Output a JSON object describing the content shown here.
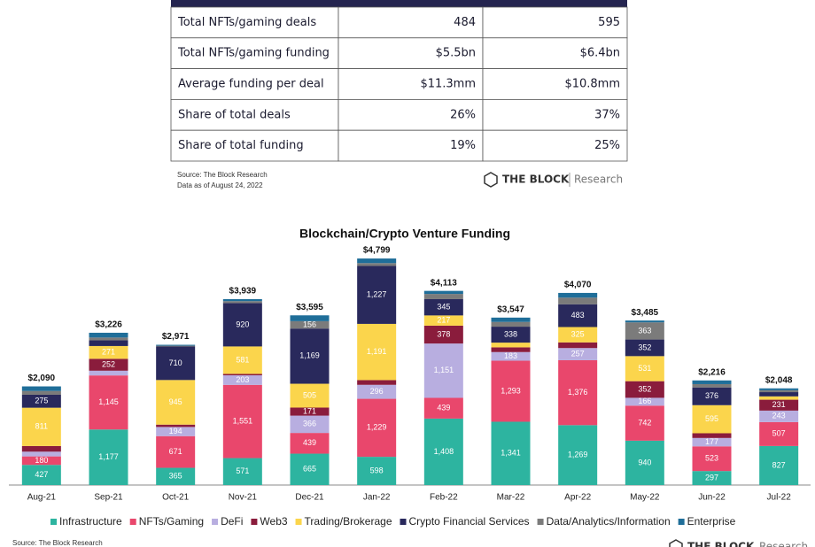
{
  "table": {
    "rows": [
      [
        "Total NFTs/gaming deals",
        "484",
        "595"
      ],
      [
        "Total NFTs/gaming funding",
        "$5.5bn",
        "$6.4bn"
      ],
      [
        "Average funding per deal",
        "$11.3mm",
        "$10.8mm"
      ],
      [
        "Share of total deals",
        "26%",
        "37%"
      ],
      [
        "Share of total funding",
        "19%",
        "25%"
      ]
    ],
    "source": "Source: The Block Research",
    "date": "Data as of August 24, 2022"
  },
  "logo": {
    "name": "THE BLOCK",
    "sub": "Research"
  },
  "chart_data": {
    "type": "stacked_bar",
    "title": "Blockchain/Crypto Venture Funding",
    "categories": [
      "Aug-21",
      "Sep-21",
      "Oct-21",
      "Nov-21",
      "Dec-21",
      "Jan-22",
      "Feb-22",
      "Mar-22",
      "Apr-22",
      "May-22",
      "Jun-22",
      "Jul-22"
    ],
    "total_labels": [
      "$2,090",
      "$3,226",
      "$2,971",
      "$3,939",
      "$3,595",
      "$4,799",
      "$4,113",
      "$3,547",
      "$4,070",
      "$3,485",
      "$2,216",
      "$2,048"
    ],
    "ylim": [
      0,
      5100
    ],
    "series": [
      {
        "name": "Infrastructure",
        "color": "#2db4a0",
        "values": [
          427,
          1177,
          365,
          571,
          665,
          598,
          1408,
          1341,
          1269,
          940,
          297,
          827
        ],
        "value_labels": [
          "427",
          "1,177",
          "365",
          "571",
          "665",
          "598",
          "1,408",
          "1,341",
          "1,269",
          "940",
          "297",
          "827"
        ]
      },
      {
        "name": "NFTs/Gaming",
        "color": "#e9476c",
        "values": [
          180,
          1145,
          671,
          1551,
          439,
          1229,
          439,
          1293,
          1376,
          742,
          523,
          507
        ],
        "value_labels": [
          "180",
          "1,145",
          "671",
          "1,551",
          "439",
          "1,229",
          "439",
          "1,293",
          "1,376",
          "742",
          "523",
          "507"
        ]
      },
      {
        "name": "DeFi",
        "color": "#b8aee0",
        "values": [
          100,
          100,
          194,
          203,
          366,
          296,
          1151,
          183,
          257,
          166,
          177,
          243
        ],
        "value_labels": [
          null,
          null,
          "194",
          "203",
          "366",
          "296",
          "1,151",
          "183",
          "257",
          "166",
          "177",
          "243"
        ]
      },
      {
        "name": "Web3",
        "color": "#8a1c3c",
        "values": [
          120,
          252,
          50,
          30,
          171,
          100,
          378,
          100,
          120,
          352,
          100,
          231
        ],
        "value_labels": [
          null,
          "252",
          null,
          null,
          "171",
          null,
          "378",
          null,
          null,
          "352",
          null,
          "231"
        ]
      },
      {
        "name": "Trading/Brokerage",
        "color": "#fbd54c",
        "values": [
          811,
          271,
          945,
          581,
          505,
          1191,
          217,
          100,
          325,
          531,
          595,
          70
        ],
        "value_labels": [
          "811",
          "271",
          "945",
          "581",
          "505",
          "1,191",
          "217",
          null,
          "325",
          "531",
          "595",
          null
        ]
      },
      {
        "name": "Crypto Financial Services",
        "color": "#29295c",
        "values": [
          275,
          120,
          710,
          920,
          1169,
          1227,
          345,
          338,
          483,
          352,
          376,
          90
        ],
        "value_labels": [
          "275",
          null,
          "710",
          "920",
          "1,169",
          "1,227",
          "345",
          "338",
          "483",
          "352",
          "376",
          null
        ]
      },
      {
        "name": "Data/Analytics/Information",
        "color": "#7b7b7b",
        "values": [
          80,
          60,
          16,
          40,
          156,
          60,
          110,
          100,
          140,
          363,
          70,
          40
        ],
        "value_labels": [
          null,
          null,
          null,
          null,
          "156",
          null,
          null,
          null,
          null,
          "363",
          null,
          null
        ]
      },
      {
        "name": "Enterprise",
        "color": "#1f6e99",
        "values": [
          97,
          101,
          20,
          43,
          124,
          98,
          65,
          92,
          100,
          39,
          78,
          40
        ],
        "value_labels": [
          null,
          null,
          null,
          null,
          null,
          null,
          null,
          null,
          null,
          null,
          null,
          null
        ]
      }
    ],
    "footer": "Source: The Block Research"
  }
}
